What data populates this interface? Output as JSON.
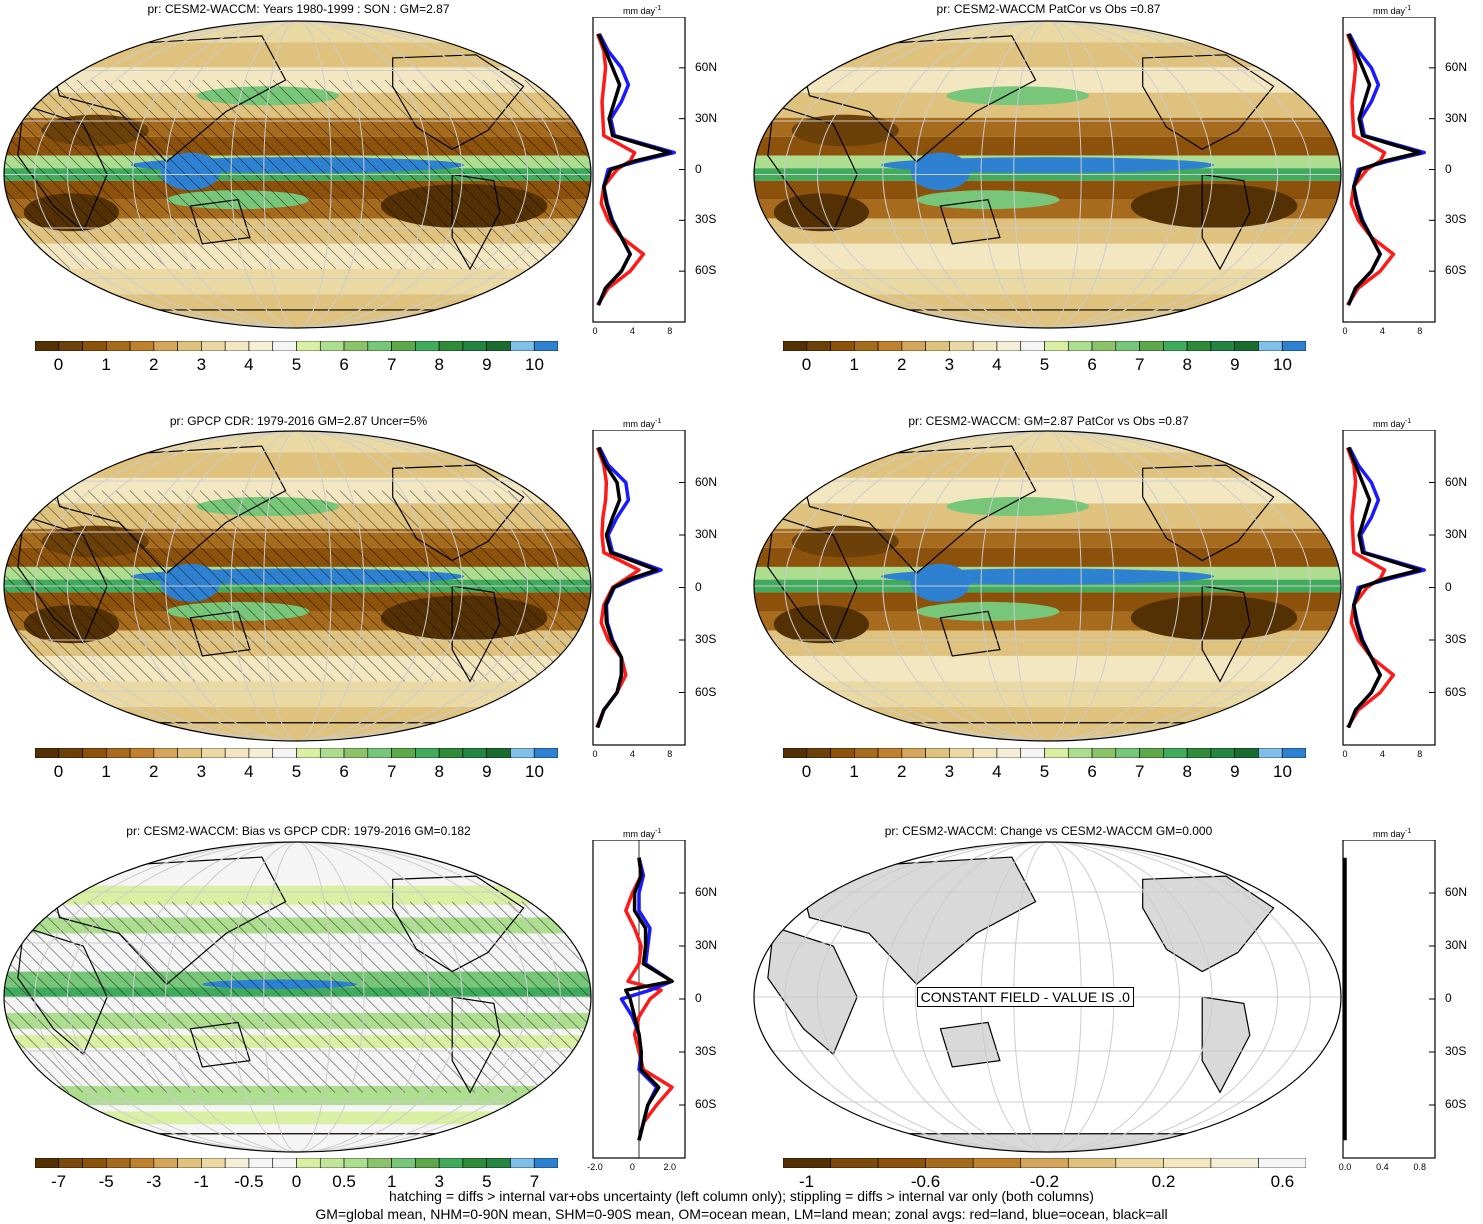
{
  "panels": [
    {
      "title": "pr: CESM2-WACCM: Years 1980-1999 : SON : GM=2.87",
      "kind": "model",
      "hatch": true
    },
    {
      "title": "pr: CESM2-WACCM PatCor vs Obs =0.87",
      "kind": "model",
      "hatch": false
    },
    {
      "title": "pr: GPCP CDR: 1979-2016 GM=2.87 Uncer=5%",
      "kind": "obs",
      "hatch": true
    },
    {
      "title": "pr: CESM2-WACCM: GM=2.87 PatCor vs Obs =0.87",
      "kind": "model",
      "hatch": false
    },
    {
      "title": "pr: CESM2-WACCM: Bias vs GPCP CDR: 1979-2016  GM=0.182",
      "kind": "bias",
      "hatch": true
    },
    {
      "title": "pr: CESM2-WACCM: Change vs CESM2-WACCM GM=0.000",
      "kind": "const",
      "hatch": false
    }
  ],
  "zonal_unit": "mm day",
  "zonal_unit_sup": "-1",
  "lat_labels": [
    "60N",
    "30N",
    "0",
    "30S",
    "60S"
  ],
  "zonal_xticks": {
    "abs": [
      "0",
      "4",
      "8"
    ],
    "bias": [
      "-2.0",
      "0",
      "2.0"
    ],
    "change": [
      "0.0",
      "0.4",
      "0.8"
    ]
  },
  "colorbars": {
    "abs": {
      "labels": [
        "0",
        "1",
        "2",
        "3",
        "4",
        "5",
        "6",
        "7",
        "8",
        "9",
        "10"
      ],
      "colors": [
        "#543005",
        "#6b4009",
        "#8c510a",
        "#a66b1d",
        "#bf812d",
        "#d4a55a",
        "#dfc27d",
        "#ebd9a3",
        "#f3e7c1",
        "#f6efd8",
        "#f5f5f5",
        "#d9f0a3",
        "#addd8e",
        "#8cc26a",
        "#78c679",
        "#5da84a",
        "#41ab5d",
        "#2f8a3a",
        "#238443",
        "#1a6b30",
        "#7fbfe8",
        "#2e80d0"
      ]
    },
    "bias": {
      "labels": [
        "-7",
        "-5",
        "-3",
        "-1",
        "-0.5",
        "0",
        "0.5",
        "1",
        "3",
        "5",
        "7"
      ],
      "colors": [
        "#543005",
        "#7a4a0c",
        "#8c510a",
        "#a66b1d",
        "#bf812d",
        "#d4a55a",
        "#dfc27d",
        "#ebd9a3",
        "#f6efd8",
        "#f5f5f5",
        "#f5f5f5",
        "#d9f0a3",
        "#c2e699",
        "#addd8e",
        "#8cc26a",
        "#78c679",
        "#5da84a",
        "#41ab5d",
        "#2f8a3a",
        "#238443",
        "#7fbfe8",
        "#2e80d0"
      ]
    },
    "change": {
      "labels": [
        "-1",
        "-0.6",
        "-0.2",
        "0.2",
        "0.6"
      ],
      "colors": [
        "#543005",
        "#7a4a0c",
        "#8c510a",
        "#a66b1d",
        "#bf812d",
        "#d4a55a",
        "#dfc27d",
        "#ebd9a3",
        "#f3e7c1",
        "#f6efd8",
        "#f5f5f5"
      ]
    }
  },
  "constant_field_text": "CONSTANT FIELD - VALUE IS .0",
  "footnotes": [
    "hatching = diffs > internal var+obs uncertainty (left column only); stippling = diffs > internal var only (both columns)",
    "GM=global mean, NHM=0-90N mean, SHM=0-90S mean, OM=ocean mean, LM=land mean; zonal avgs: red=land, blue=ocean, black=all"
  ],
  "chart_data": [
    {
      "type": "line",
      "title": "",
      "xlabel": "mm day-1",
      "ylabel": "",
      "note": "zonal average precipitation, panel 1 (CESM2-WACCM SON)",
      "y": [
        80,
        70,
        60,
        50,
        40,
        30,
        20,
        10,
        5,
        0,
        -10,
        -20,
        -30,
        -40,
        -50,
        -60,
        -70,
        -80
      ],
      "series": [
        {
          "name": "land",
          "color": "red",
          "values": [
            0.3,
            1.0,
            1.2,
            1.0,
            0.8,
            0.9,
            1.0,
            4.5,
            4.0,
            2.5,
            1.0,
            0.7,
            1.5,
            3.0,
            5.5,
            4.0,
            1.5,
            0.3
          ]
        },
        {
          "name": "ocean",
          "color": "blue",
          "values": [
            0.5,
            1.5,
            3.0,
            3.8,
            3.0,
            1.8,
            2.2,
            9.0,
            5.0,
            1.5,
            1.0,
            1.4,
            2.0,
            3.0,
            4.0,
            3.0,
            1.2,
            0.4
          ]
        },
        {
          "name": "all",
          "color": "black",
          "values": [
            0.4,
            1.2,
            2.0,
            2.8,
            2.2,
            1.6,
            2.0,
            8.5,
            4.5,
            1.8,
            1.0,
            1.3,
            1.9,
            3.0,
            4.0,
            3.0,
            1.2,
            0.4
          ]
        }
      ],
      "xlim": [
        0,
        10
      ]
    },
    {
      "type": "line",
      "title": "",
      "xlabel": "mm day-1",
      "ylabel": "",
      "note": "zonal average precipitation, panel 3 (GPCP CDR)",
      "y": [
        80,
        70,
        60,
        50,
        40,
        30,
        20,
        10,
        5,
        0,
        -10,
        -20,
        -30,
        -40,
        -50,
        -60,
        -70,
        -80
      ],
      "series": [
        {
          "name": "land",
          "color": "red",
          "values": [
            0.3,
            1.0,
            1.3,
            1.2,
            0.9,
            0.8,
            1.0,
            5.0,
            3.5,
            2.0,
            1.0,
            0.7,
            1.5,
            3.0,
            3.5,
            2.5,
            1.0,
            0.2
          ]
        },
        {
          "name": "ocean",
          "color": "blue",
          "values": [
            0.5,
            1.5,
            3.5,
            3.8,
            2.5,
            1.5,
            2.0,
            7.5,
            4.5,
            2.2,
            1.3,
            1.4,
            2.0,
            3.0,
            3.0,
            2.5,
            1.0,
            0.3
          ]
        },
        {
          "name": "all",
          "color": "black",
          "values": [
            0.4,
            1.2,
            2.5,
            2.8,
            2.0,
            1.3,
            1.8,
            7.0,
            4.0,
            2.1,
            1.2,
            1.3,
            1.9,
            3.0,
            3.0,
            2.5,
            1.0,
            0.3
          ]
        }
      ],
      "xlim": [
        0,
        10
      ]
    },
    {
      "type": "line",
      "title": "",
      "xlabel": "mm day-1",
      "ylabel": "",
      "note": "zonal average precipitation bias, panel 5",
      "y": [
        80,
        70,
        60,
        50,
        40,
        30,
        20,
        10,
        5,
        0,
        -10,
        -20,
        -30,
        -40,
        -50,
        -60,
        -70,
        -80
      ],
      "series": [
        {
          "name": "land",
          "color": "red",
          "values": [
            0.0,
            0.1,
            -0.3,
            -0.6,
            -0.2,
            0.1,
            0.0,
            -0.5,
            1.0,
            0.5,
            0.0,
            -0.2,
            0.0,
            0.2,
            1.5,
            0.8,
            0.2,
            0.0
          ]
        },
        {
          "name": "ocean",
          "color": "blue",
          "values": [
            0.0,
            0.2,
            0.0,
            0.0,
            0.5,
            0.4,
            0.3,
            1.5,
            0.5,
            -0.8,
            -0.3,
            0.0,
            0.1,
            0.0,
            0.8,
            0.4,
            0.2,
            0.0
          ]
        },
        {
          "name": "all",
          "color": "black",
          "values": [
            0.0,
            0.1,
            -0.2,
            -0.2,
            0.3,
            0.3,
            0.2,
            1.5,
            -0.6,
            -0.4,
            -0.2,
            0.0,
            0.1,
            0.1,
            0.9,
            0.4,
            0.2,
            0.0
          ]
        }
      ],
      "xlim": [
        -2,
        2
      ]
    },
    {
      "type": "line",
      "title": "",
      "xlabel": "mm day-1",
      "ylabel": "",
      "note": "zonal average change, panel 6 (constant zero)",
      "y": [
        80,
        -80
      ],
      "series": [
        {
          "name": "all",
          "color": "black",
          "values": [
            0,
            0
          ]
        }
      ],
      "xlim": [
        0,
        1
      ]
    }
  ]
}
